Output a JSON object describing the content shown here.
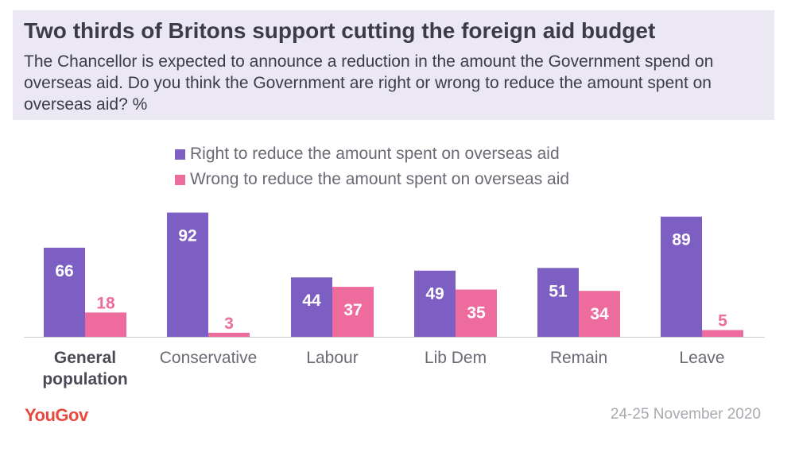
{
  "header": {
    "title": "Two thirds of Britons support cutting the foreign aid budget",
    "subtitle": "The Chancellor is expected to announce a reduction in the amount the Government spend on overseas aid. Do you think the Government are right or wrong to reduce the amount spent on overseas aid? %"
  },
  "footer": {
    "logo": "YouGov",
    "date": "24-25 November 2020"
  },
  "colors": {
    "right": "#7d5fc4",
    "wrong": "#ee6c9d"
  },
  "chart_data": {
    "type": "bar",
    "title": "Two thirds of Britons support cutting the foreign aid budget",
    "xlabel": "",
    "ylabel": "%",
    "ylim": [
      0,
      100
    ],
    "legend_position": "top-center",
    "grid": false,
    "categories": [
      [
        "General",
        "population"
      ],
      [
        "Conservative"
      ],
      [
        "Labour"
      ],
      [
        "Lib Dem"
      ],
      [
        "Remain"
      ],
      [
        "Leave"
      ]
    ],
    "bold_categories": [
      0
    ],
    "series": [
      {
        "name": "Right to reduce the amount spent on overseas aid",
        "values": [
          66,
          92,
          44,
          49,
          51,
          89
        ]
      },
      {
        "name": "Wrong to reduce the amount spent on overseas aid",
        "values": [
          18,
          3,
          37,
          35,
          34,
          5
        ]
      }
    ]
  }
}
